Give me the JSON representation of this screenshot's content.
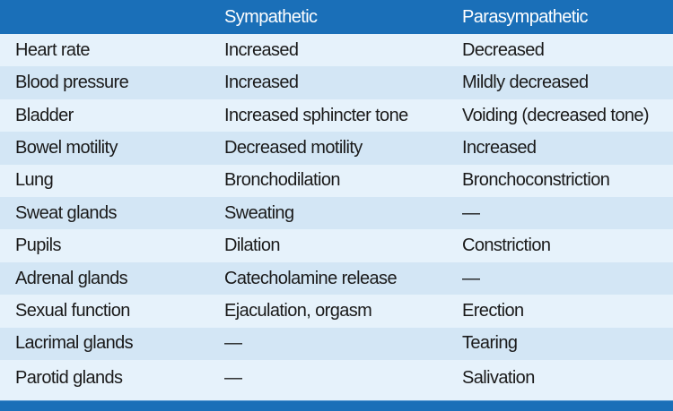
{
  "table": {
    "headers": [
      "",
      "Sympathetic",
      "Parasympathetic"
    ],
    "rows": [
      [
        "Heart rate",
        "Increased",
        "Decreased"
      ],
      [
        "Blood pressure",
        "Increased",
        "Mildly decreased"
      ],
      [
        "Bladder",
        "Increased sphincter tone",
        "Voiding (decreased tone)"
      ],
      [
        "Bowel motility",
        "Decreased motility",
        "Increased"
      ],
      [
        "Lung",
        "Bronchodilation",
        "Bronchoconstriction"
      ],
      [
        "Sweat glands",
        "Sweating",
        "—"
      ],
      [
        "Pupils",
        "Dilation",
        "Constriction"
      ],
      [
        "Adrenal glands",
        "Catecholamine release",
        "—"
      ],
      [
        "Sexual function",
        "Ejaculation, orgasm",
        "Erection"
      ],
      [
        "Lacrimal glands",
        "—",
        "Tearing"
      ],
      [
        "Parotid glands",
        "—",
        "Salivation"
      ]
    ]
  },
  "colors": {
    "header": "#1a6fb8",
    "row_light": "#e6f2fb",
    "row_dark": "#d3e6f5"
  }
}
